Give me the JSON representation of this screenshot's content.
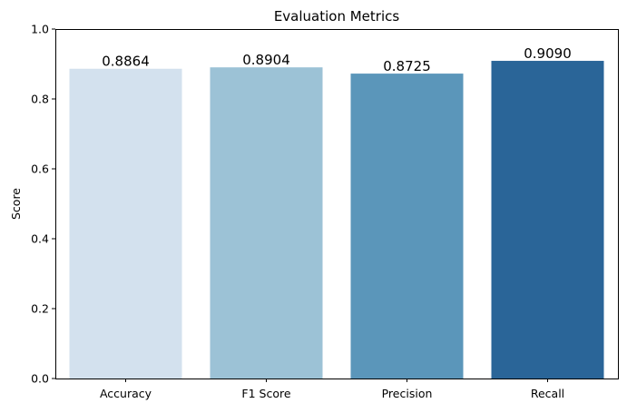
{
  "chart_data": {
    "type": "bar",
    "title": "Evaluation Metrics",
    "xlabel": "",
    "ylabel": "Score",
    "categories": [
      "Accuracy",
      "F1 Score",
      "Precision",
      "Recall"
    ],
    "values": [
      0.8864,
      0.8904,
      0.8725,
      0.909
    ],
    "value_labels": [
      "0.8864",
      "0.8904",
      "0.8725",
      "0.9090"
    ],
    "colors": [
      "#d3e1ee",
      "#9cc2d6",
      "#5b96ba",
      "#2a6598"
    ],
    "ylim": [
      0,
      1
    ],
    "yticks": [
      0.0,
      0.2,
      0.4,
      0.6,
      0.8,
      1.0
    ],
    "ytick_labels": [
      "0.0",
      "0.2",
      "0.4",
      "0.6",
      "0.8",
      "1.0"
    ],
    "grid": false,
    "legend": "none"
  }
}
